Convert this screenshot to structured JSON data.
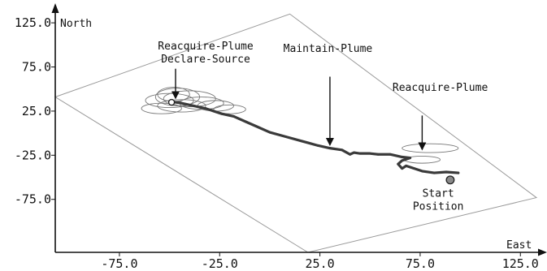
{
  "chart_data": {
    "type": "line",
    "xlabel": "East",
    "ylabel": "North",
    "x_ticks": [
      "-75.0",
      "-25.0",
      "25.0",
      "75.0",
      "125.0"
    ],
    "y_ticks": [
      "125.0",
      "75.0",
      "25.0",
      "-25.0",
      "-75.0"
    ],
    "x_tick_values": [
      -75,
      -25,
      25,
      75,
      125
    ],
    "y_tick_values": [
      125,
      75,
      25,
      -25,
      -75
    ],
    "xlim": [
      -107,
      133
    ],
    "ylim": [
      -135,
      138
    ],
    "series": [
      {
        "x": [
          94,
          88,
          82,
          76,
          72,
          68,
          66,
          64,
          66,
          70,
          66,
          60,
          54,
          50,
          45,
          42,
          40,
          36,
          30,
          24,
          16,
          8,
          0,
          -6,
          -12,
          -18,
          -24,
          -28,
          -32,
          -38,
          -44,
          -50
        ],
        "y": [
          -45,
          -44,
          -45,
          -43,
          -40,
          -37,
          -40,
          -35,
          -31,
          -28,
          -27,
          -24,
          -24,
          -23,
          -23,
          -22,
          -24,
          -19,
          -17,
          -14,
          -9,
          -4,
          1,
          7,
          13,
          19,
          22,
          25,
          28,
          31,
          34,
          36
        ]
      }
    ],
    "search_loops": [
      {
        "cx": -46,
        "cy": 41,
        "rx": 11,
        "ry": 10
      },
      {
        "cx": -50,
        "cy": 37,
        "rx": 12,
        "ry": 8
      },
      {
        "cx": -40,
        "cy": 39,
        "rx": 13,
        "ry": 9
      },
      {
        "cx": -34,
        "cy": 34,
        "rx": 11,
        "ry": 7
      },
      {
        "cx": -44,
        "cy": 31,
        "rx": 12,
        "ry": 7
      },
      {
        "cx": -27,
        "cy": 31,
        "rx": 9,
        "ry": 6
      },
      {
        "cx": -54,
        "cy": 28,
        "rx": 10,
        "ry": 6
      },
      {
        "cx": -20,
        "cy": 27,
        "rx": 8,
        "ry": 5
      },
      {
        "cx": -48,
        "cy": 44,
        "rx": 8,
        "ry": 8
      },
      {
        "cx": 80,
        "cy": -17,
        "rx": 14,
        "ry": 5
      },
      {
        "cx": 76,
        "cy": -30,
        "rx": 9,
        "ry": 4
      }
    ],
    "polygon": [
      [
        -107,
        41
      ],
      [
        10,
        135
      ],
      [
        133,
        -73
      ],
      [
        19,
        -135
      ]
    ],
    "markers": [
      {
        "x": -49,
        "y": 35,
        "kind": "source"
      },
      {
        "x": 90,
        "y": -53,
        "kind": "start"
      }
    ],
    "annotations": [
      {
        "lines": [
          "Reacquire-Plume",
          "Declare-Source"
        ],
        "text_x": -32,
        "text_y": 95,
        "arrow_from": [
          -47,
          73
        ],
        "arrow_to": [
          -47,
          43
        ]
      },
      {
        "lines": [
          "Maintain-Plume"
        ],
        "text_x": 29,
        "text_y": 92,
        "arrow_from": [
          30,
          64
        ],
        "arrow_to": [
          30,
          -10
        ]
      },
      {
        "lines": [
          "Reacquire-Plume"
        ],
        "text_x": 85,
        "text_y": 48,
        "arrow_from": [
          76,
          20
        ],
        "arrow_to": [
          76,
          -15
        ]
      },
      {
        "lines": [
          "Start",
          "Position"
        ],
        "text_x": 84,
        "text_y": -72
      }
    ]
  }
}
